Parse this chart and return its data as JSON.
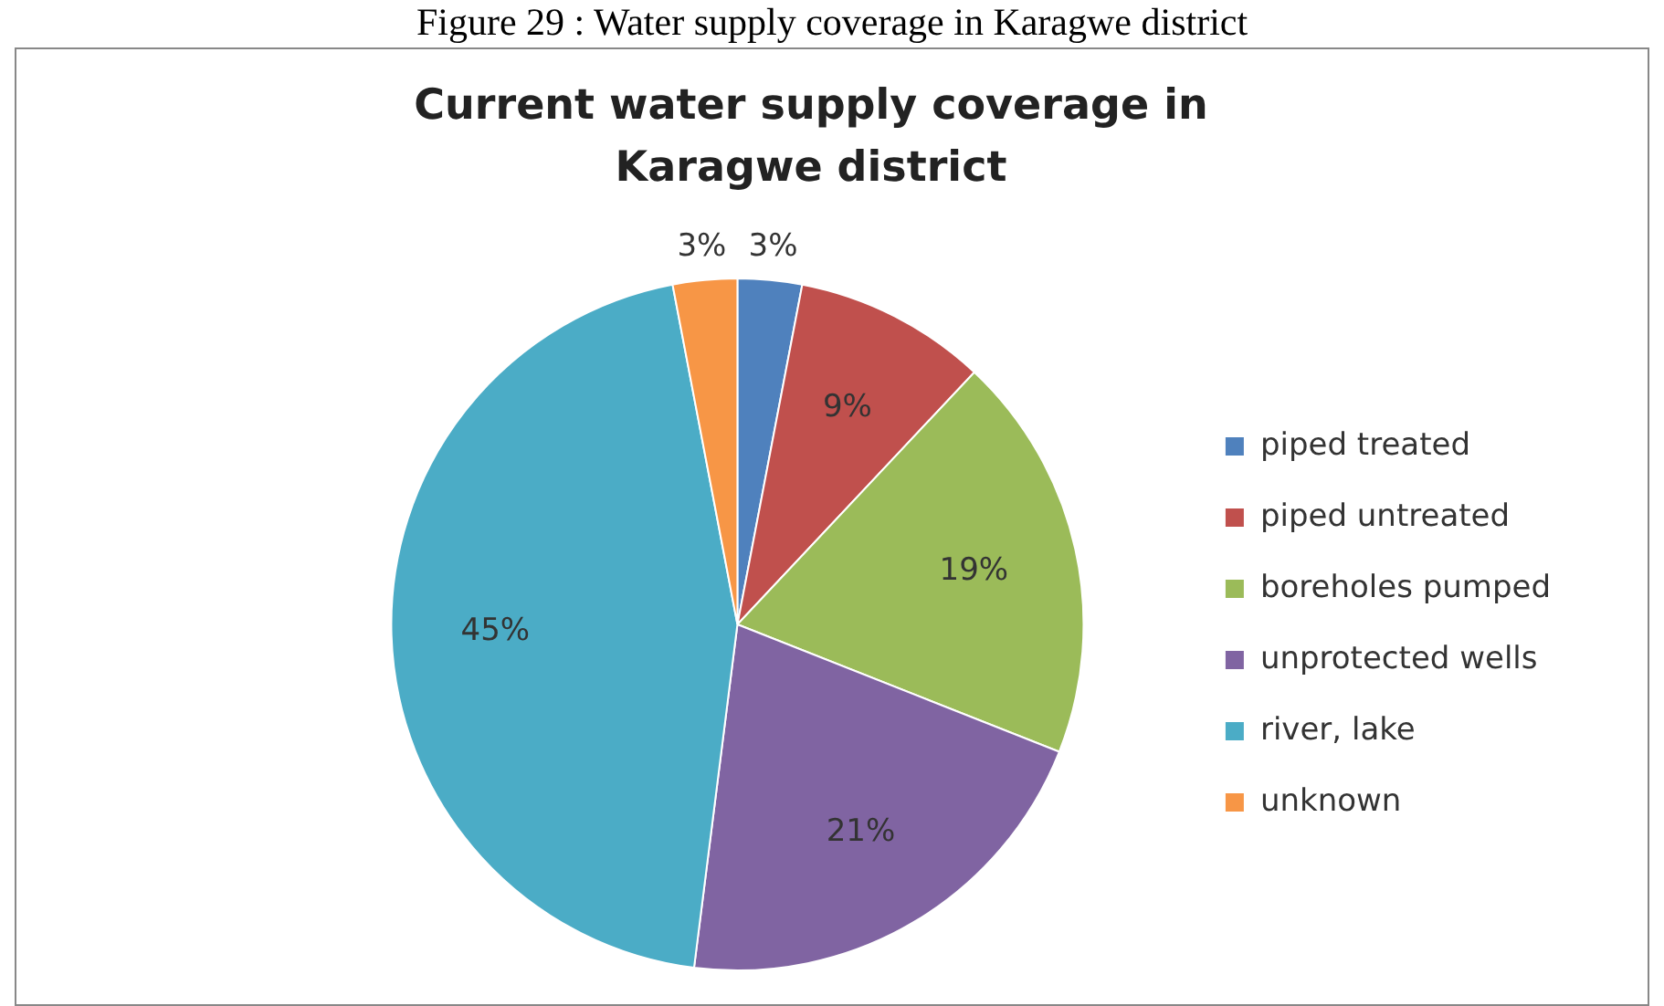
{
  "chart_data": {
    "type": "pie",
    "title": "Current water supply coverage in Karagwe district",
    "annotations": [
      "Figure 29 : Water supply coverage in Karagwe district"
    ],
    "categories": [
      "piped treated",
      "piped untreated",
      "boreholes pumped",
      "unprotected wells",
      "river, lake",
      "unknown"
    ],
    "values": [
      3,
      9,
      19,
      21,
      45,
      3
    ],
    "value_labels": [
      "3%",
      "9%",
      "19%",
      "21%",
      "45%",
      "3%"
    ],
    "colors": [
      "#4f81bd",
      "#c0504d",
      "#9bbb59",
      "#8064a2",
      "#4bacc6",
      "#f79646"
    ],
    "legend": "right"
  }
}
